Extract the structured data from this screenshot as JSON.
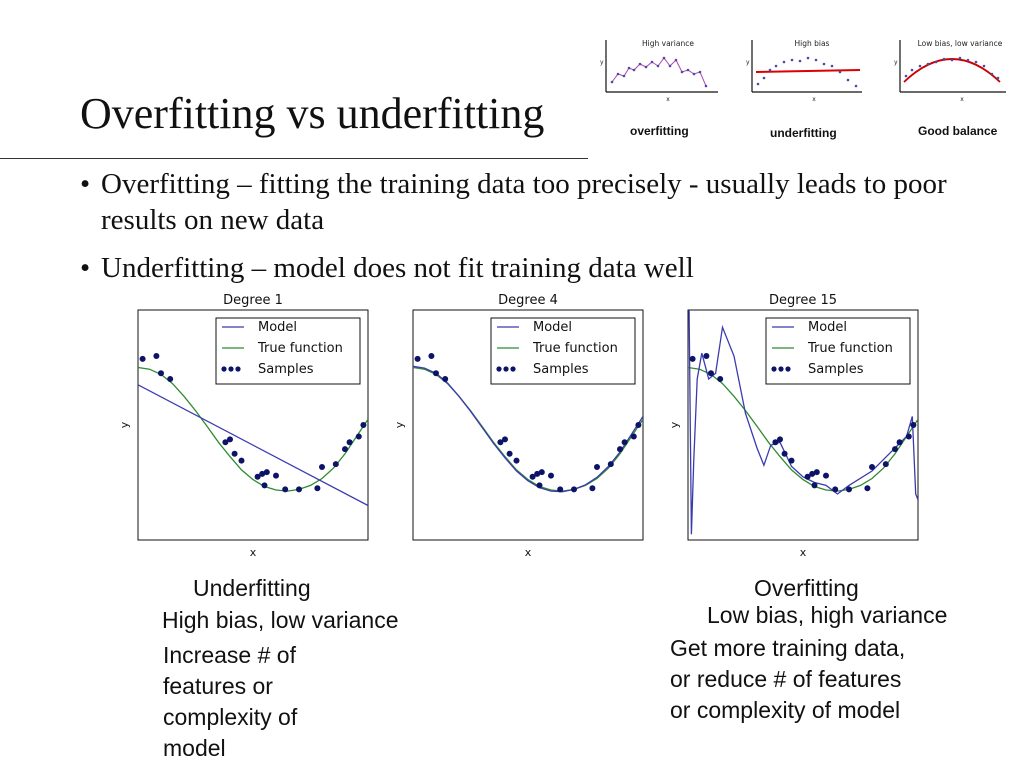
{
  "slide": {
    "title": "Overfitting vs underfitting",
    "bullets": [
      "Overfitting – fitting the training data too precisely - usually leads to poor results on new data",
      "Underfitting – model does not fit training data well"
    ],
    "bullet_glyph": "•"
  },
  "mini_charts": [
    {
      "title": "High variance",
      "xlabel": "x",
      "ylabel": "y",
      "caption": "overfitting",
      "fit_color": "#b048b0"
    },
    {
      "title": "High bias",
      "xlabel": "x",
      "ylabel": "y",
      "caption": "underfitting",
      "fit_color": "#dd0000"
    },
    {
      "title": "Low bias, low variance",
      "xlabel": "x",
      "ylabel": "y",
      "caption": "Good balance",
      "fit_color": "#cc0000"
    }
  ],
  "chart_data": [
    {
      "type": "line",
      "title": "Degree 1",
      "xlabel": "x",
      "ylabel": "y",
      "xlim": [
        0,
        1
      ],
      "ylim": [
        -2,
        2
      ],
      "legend": {
        "placement": "top-right",
        "entries": [
          "Model",
          "True function",
          "Samples"
        ]
      },
      "colors": {
        "model": "#3b3bb0",
        "true_function": "#2e8b2e",
        "samples": "#0d1366"
      },
      "model_points": [
        [
          0,
          0.7
        ],
        [
          1,
          -1.4
        ]
      ],
      "true_function_points": [
        [
          0,
          1
        ],
        [
          0.05,
          0.97
        ],
        [
          0.1,
          0.88
        ],
        [
          0.15,
          0.72
        ],
        [
          0.2,
          0.5
        ],
        [
          0.25,
          0.25
        ],
        [
          0.3,
          -0.02
        ],
        [
          0.35,
          -0.3
        ],
        [
          0.4,
          -0.55
        ],
        [
          0.45,
          -0.78
        ],
        [
          0.5,
          -0.95
        ],
        [
          0.55,
          -1.07
        ],
        [
          0.6,
          -1.13
        ],
        [
          0.65,
          -1.15
        ],
        [
          0.7,
          -1.12
        ],
        [
          0.75,
          -1.05
        ],
        [
          0.8,
          -0.93
        ],
        [
          0.85,
          -0.75
        ],
        [
          0.9,
          -0.5
        ],
        [
          0.95,
          -0.2
        ],
        [
          1,
          0.1
        ]
      ],
      "samples": [
        [
          0.02,
          1.15
        ],
        [
          0.08,
          1.2
        ],
        [
          0.1,
          0.9
        ],
        [
          0.14,
          0.8
        ],
        [
          0.38,
          -0.3
        ],
        [
          0.4,
          -0.25
        ],
        [
          0.42,
          -0.5
        ],
        [
          0.45,
          -0.62
        ],
        [
          0.52,
          -0.9
        ],
        [
          0.54,
          -0.85
        ],
        [
          0.56,
          -0.82
        ],
        [
          0.55,
          -1.05
        ],
        [
          0.6,
          -0.88
        ],
        [
          0.64,
          -1.12
        ],
        [
          0.7,
          -1.12
        ],
        [
          0.78,
          -1.1
        ],
        [
          0.8,
          -0.73
        ],
        [
          0.86,
          -0.68
        ],
        [
          0.9,
          -0.42
        ],
        [
          0.92,
          -0.3
        ],
        [
          0.96,
          -0.2
        ],
        [
          0.98,
          0
        ]
      ]
    },
    {
      "type": "line",
      "title": "Degree 4",
      "xlabel": "x",
      "ylabel": "y",
      "xlim": [
        0,
        1
      ],
      "ylim": [
        -2,
        2
      ],
      "legend": {
        "placement": "top-right",
        "entries": [
          "Model",
          "True function",
          "Samples"
        ]
      },
      "colors": {
        "model": "#3b3bb0",
        "true_function": "#2e8b2e",
        "samples": "#0d1366"
      },
      "model_points": [
        [
          0,
          1.02
        ],
        [
          0.05,
          0.99
        ],
        [
          0.1,
          0.9
        ],
        [
          0.15,
          0.73
        ],
        [
          0.2,
          0.5
        ],
        [
          0.25,
          0.24
        ],
        [
          0.3,
          -0.04
        ],
        [
          0.35,
          -0.32
        ],
        [
          0.4,
          -0.57
        ],
        [
          0.45,
          -0.8
        ],
        [
          0.5,
          -0.97
        ],
        [
          0.55,
          -1.09
        ],
        [
          0.6,
          -1.15
        ],
        [
          0.65,
          -1.16
        ],
        [
          0.7,
          -1.12
        ],
        [
          0.75,
          -1.04
        ],
        [
          0.8,
          -0.91
        ],
        [
          0.85,
          -0.72
        ],
        [
          0.9,
          -0.47
        ],
        [
          0.95,
          -0.16
        ],
        [
          1,
          0.15
        ]
      ],
      "true_function_points": [
        [
          0,
          1
        ],
        [
          0.05,
          0.97
        ],
        [
          0.1,
          0.88
        ],
        [
          0.15,
          0.72
        ],
        [
          0.2,
          0.5
        ],
        [
          0.25,
          0.25
        ],
        [
          0.3,
          -0.02
        ],
        [
          0.35,
          -0.3
        ],
        [
          0.4,
          -0.55
        ],
        [
          0.45,
          -0.78
        ],
        [
          0.5,
          -0.95
        ],
        [
          0.55,
          -1.07
        ],
        [
          0.6,
          -1.13
        ],
        [
          0.65,
          -1.15
        ],
        [
          0.7,
          -1.12
        ],
        [
          0.75,
          -1.05
        ],
        [
          0.8,
          -0.93
        ],
        [
          0.85,
          -0.75
        ],
        [
          0.9,
          -0.5
        ],
        [
          0.95,
          -0.2
        ],
        [
          1,
          0.1
        ]
      ],
      "samples": [
        [
          0.02,
          1.15
        ],
        [
          0.08,
          1.2
        ],
        [
          0.1,
          0.9
        ],
        [
          0.14,
          0.8
        ],
        [
          0.38,
          -0.3
        ],
        [
          0.4,
          -0.25
        ],
        [
          0.42,
          -0.5
        ],
        [
          0.45,
          -0.62
        ],
        [
          0.52,
          -0.9
        ],
        [
          0.54,
          -0.85
        ],
        [
          0.56,
          -0.82
        ],
        [
          0.55,
          -1.05
        ],
        [
          0.6,
          -0.88
        ],
        [
          0.64,
          -1.12
        ],
        [
          0.7,
          -1.12
        ],
        [
          0.78,
          -1.1
        ],
        [
          0.8,
          -0.73
        ],
        [
          0.86,
          -0.68
        ],
        [
          0.9,
          -0.42
        ],
        [
          0.92,
          -0.3
        ],
        [
          0.96,
          -0.2
        ],
        [
          0.98,
          0
        ]
      ]
    },
    {
      "type": "line",
      "title": "Degree 15",
      "xlabel": "x",
      "ylabel": "y",
      "xlim": [
        0,
        1
      ],
      "ylim": [
        -2,
        2
      ],
      "legend": {
        "placement": "top-right",
        "entries": [
          "Model",
          "True function",
          "Samples"
        ]
      },
      "colors": {
        "model": "#3b3bb0",
        "true_function": "#2e8b2e",
        "samples": "#0d1366"
      },
      "model_points": [
        [
          0.005,
          2
        ],
        [
          0.015,
          -1.9
        ],
        [
          0.025,
          -0.6
        ],
        [
          0.04,
          0.8
        ],
        [
          0.06,
          1.25
        ],
        [
          0.09,
          0.8
        ],
        [
          0.12,
          0.9
        ],
        [
          0.15,
          1.7
        ],
        [
          0.2,
          1.2
        ],
        [
          0.25,
          0.2
        ],
        [
          0.3,
          -0.4
        ],
        [
          0.33,
          -0.7
        ],
        [
          0.36,
          -0.35
        ],
        [
          0.4,
          -0.3
        ],
        [
          0.45,
          -0.72
        ],
        [
          0.5,
          -0.9
        ],
        [
          0.55,
          -1
        ],
        [
          0.6,
          -1.05
        ],
        [
          0.65,
          -1.2
        ],
        [
          0.7,
          -1.05
        ],
        [
          0.8,
          -0.8
        ],
        [
          0.9,
          -0.4
        ],
        [
          0.95,
          -0.2
        ],
        [
          0.975,
          0.15
        ],
        [
          0.99,
          -1.2
        ],
        [
          1,
          -1.3
        ]
      ],
      "true_function_points": [
        [
          0,
          1
        ],
        [
          0.05,
          0.97
        ],
        [
          0.1,
          0.88
        ],
        [
          0.15,
          0.72
        ],
        [
          0.2,
          0.5
        ],
        [
          0.25,
          0.25
        ],
        [
          0.3,
          -0.02
        ],
        [
          0.35,
          -0.3
        ],
        [
          0.4,
          -0.55
        ],
        [
          0.45,
          -0.78
        ],
        [
          0.5,
          -0.95
        ],
        [
          0.55,
          -1.07
        ],
        [
          0.6,
          -1.13
        ],
        [
          0.65,
          -1.15
        ],
        [
          0.7,
          -1.12
        ],
        [
          0.75,
          -1.05
        ],
        [
          0.8,
          -0.93
        ],
        [
          0.85,
          -0.75
        ],
        [
          0.9,
          -0.5
        ],
        [
          0.95,
          -0.2
        ],
        [
          1,
          0.1
        ]
      ],
      "samples": [
        [
          0.02,
          1.15
        ],
        [
          0.08,
          1.2
        ],
        [
          0.1,
          0.9
        ],
        [
          0.14,
          0.8
        ],
        [
          0.38,
          -0.3
        ],
        [
          0.4,
          -0.25
        ],
        [
          0.42,
          -0.5
        ],
        [
          0.45,
          -0.62
        ],
        [
          0.52,
          -0.9
        ],
        [
          0.54,
          -0.85
        ],
        [
          0.56,
          -0.82
        ],
        [
          0.55,
          -1.05
        ],
        [
          0.6,
          -0.88
        ],
        [
          0.64,
          -1.12
        ],
        [
          0.7,
          -1.12
        ],
        [
          0.78,
          -1.1
        ],
        [
          0.8,
          -0.73
        ],
        [
          0.86,
          -0.68
        ],
        [
          0.9,
          -0.42
        ],
        [
          0.92,
          -0.3
        ],
        [
          0.96,
          -0.2
        ],
        [
          0.98,
          0
        ]
      ]
    }
  ],
  "captions": {
    "left": {
      "heading": "Underfitting",
      "subheading": "High bias, low variance",
      "remedy": [
        "Increase # of",
        "features or",
        "complexity of",
        "model"
      ]
    },
    "right": {
      "heading": "Overfitting",
      "subheading": "Low bias, high variance",
      "remedy": [
        "Get more training data,",
        "or reduce # of features",
        "or  complexity of model"
      ]
    }
  }
}
